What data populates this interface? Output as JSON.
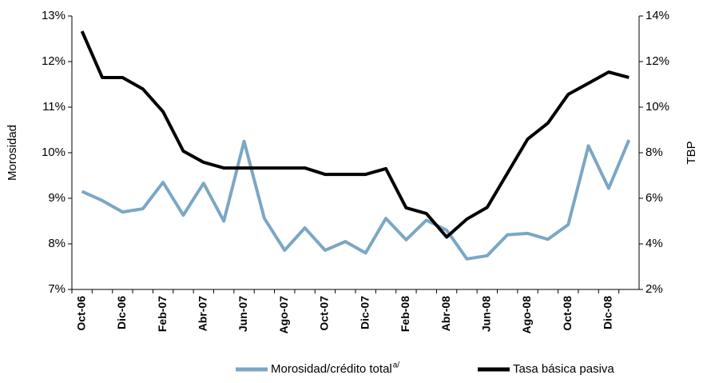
{
  "chart_data": {
    "type": "line",
    "categories": [
      "Oct-06",
      null,
      "Dic-06",
      null,
      "Feb-07",
      null,
      "Abr-07",
      null,
      "Jun-07",
      null,
      "Ago-07",
      null,
      "Oct-07",
      null,
      "Dic-07",
      null,
      "Feb-08",
      null,
      "Abr-08",
      null,
      "Jun-08",
      null,
      "Ago-08",
      null,
      "Oct-08",
      null,
      "Dic-08",
      null
    ],
    "ylabel": "Morosidad",
    "y2label": "TBP",
    "ylim": [
      7,
      13
    ],
    "yticks": [
      {
        "value": 7,
        "label": "7%"
      },
      {
        "value": 8,
        "label": "8%"
      },
      {
        "value": 9,
        "label": "9%"
      },
      {
        "value": 10,
        "label": "10%"
      },
      {
        "value": 11,
        "label": "11%"
      },
      {
        "value": 12,
        "label": "12%"
      },
      {
        "value": 13,
        "label": "13%"
      }
    ],
    "y2lim": [
      2,
      14
    ],
    "y2ticks": [
      {
        "value": 2,
        "label": "2%"
      },
      {
        "value": 4,
        "label": "4%"
      },
      {
        "value": 6,
        "label": "6%"
      },
      {
        "value": 8,
        "label": "8%"
      },
      {
        "value": 10,
        "label": "10%"
      },
      {
        "value": 12,
        "label": "12%"
      },
      {
        "value": 14,
        "label": "14%"
      }
    ],
    "legend": "bottom",
    "series": [
      {
        "name": "Morosidad/crédito total",
        "name_note": "a/",
        "color": "#7ba7c4",
        "axis": "y",
        "values": [
          9.15,
          8.95,
          8.7,
          8.77,
          9.35,
          8.63,
          9.33,
          8.5,
          10.25,
          8.56,
          7.86,
          8.35,
          7.86,
          8.05,
          7.8,
          8.56,
          8.09,
          8.52,
          8.3,
          7.67,
          7.74,
          8.2,
          8.23,
          8.1,
          8.42,
          10.15,
          9.22,
          10.28
        ]
      },
      {
        "name": "Tasa básica pasiva",
        "color": "#000000",
        "axis": "y2",
        "values": [
          13.33,
          11.3,
          11.3,
          10.8,
          9.8,
          8.07,
          7.58,
          7.33,
          7.33,
          7.33,
          7.33,
          7.33,
          7.05,
          7.05,
          7.05,
          7.3,
          5.58,
          5.33,
          4.3,
          5.09,
          5.6,
          7.1,
          8.6,
          9.3,
          10.56,
          11.05,
          11.54,
          11.3
        ]
      }
    ]
  }
}
